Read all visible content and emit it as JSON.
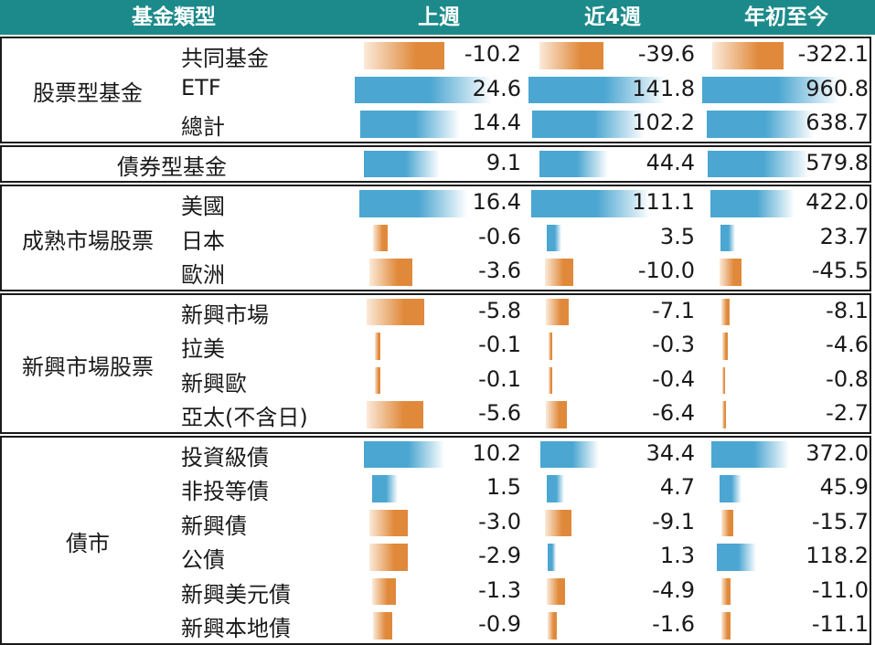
{
  "colors": {
    "header_bg": "#1c8a8a",
    "header_text": "#ffffff",
    "positive_bar": "#4ba6d1",
    "negative_bar": "#e0893a"
  },
  "header": {
    "category": "基金類型",
    "col1": "上週",
    "col2": "近4週",
    "col3": "年初至今"
  },
  "chart_data": {
    "type": "table",
    "columns": [
      "上週",
      "近4週",
      "年初至今"
    ],
    "groups": [
      {
        "name": "股票型基金",
        "rows": [
          {
            "label": "共同基金",
            "values": [
              -10.2,
              -39.6,
              -322.1
            ],
            "display": [
              "-10.2",
              "-39.6",
              "-322.1"
            ]
          },
          {
            "label": "ETF",
            "values": [
              24.6,
              141.8,
              960.8
            ],
            "display": [
              "24.6",
              "141.8",
              "960.8"
            ]
          },
          {
            "label": "總計",
            "values": [
              14.4,
              102.2,
              638.7
            ],
            "display": [
              "14.4",
              "102.2",
              "638.7"
            ]
          }
        ]
      },
      {
        "name": "債券型基金",
        "rows": [
          {
            "label": "",
            "values": [
              9.1,
              44.4,
              579.8
            ],
            "display": [
              "9.1",
              "44.4",
              "579.8"
            ]
          }
        ]
      },
      {
        "name": "成熟市場股票",
        "rows": [
          {
            "label": "美國",
            "values": [
              16.4,
              111.1,
              422.0
            ],
            "display": [
              "16.4",
              "111.1",
              "422.0"
            ]
          },
          {
            "label": "日本",
            "values": [
              -0.6,
              3.5,
              23.7
            ],
            "display": [
              "-0.6",
              "3.5",
              "23.7"
            ]
          },
          {
            "label": "歐洲",
            "values": [
              -3.6,
              -10.0,
              -45.5
            ],
            "display": [
              "-3.6",
              "-10.0",
              "-45.5"
            ]
          }
        ]
      },
      {
        "name": "新興市場股票",
        "rows": [
          {
            "label": "新興市場",
            "values": [
              -5.8,
              -7.1,
              -8.1
            ],
            "display": [
              "-5.8",
              "-7.1",
              "-8.1"
            ]
          },
          {
            "label": "拉美",
            "values": [
              -0.1,
              -0.3,
              -4.6
            ],
            "display": [
              "-0.1",
              "-0.3",
              "-4.6"
            ]
          },
          {
            "label": "新興歐",
            "values": [
              -0.1,
              -0.4,
              -0.8
            ],
            "display": [
              "-0.1",
              "-0.4",
              "-0.8"
            ]
          },
          {
            "label": "亞太(不含日)",
            "values": [
              -5.6,
              -6.4,
              -2.7
            ],
            "display": [
              "-5.6",
              "-6.4",
              "-2.7"
            ]
          }
        ]
      },
      {
        "name": "債市",
        "rows": [
          {
            "label": "投資級債",
            "values": [
              10.2,
              34.4,
              372.0
            ],
            "display": [
              "10.2",
              "34.4",
              "372.0"
            ]
          },
          {
            "label": "非投等債",
            "values": [
              1.5,
              4.7,
              45.9
            ],
            "display": [
              "1.5",
              "4.7",
              "45.9"
            ]
          },
          {
            "label": "新興債",
            "values": [
              -3.0,
              -9.1,
              -15.7
            ],
            "display": [
              "-3.0",
              "-9.1",
              "-15.7"
            ]
          },
          {
            "label": "公債",
            "values": [
              -2.9,
              1.3,
              118.2
            ],
            "display": [
              "-2.9",
              "1.3",
              "118.2"
            ]
          },
          {
            "label": "新興美元債",
            "values": [
              -1.3,
              -4.9,
              -11.0
            ],
            "display": [
              "-1.3",
              "-4.9",
              "-11.0"
            ]
          },
          {
            "label": "新興本地債",
            "values": [
              -0.9,
              -1.6,
              -11.1
            ],
            "display": [
              "-0.9",
              "-1.6",
              "-11.1"
            ]
          }
        ]
      }
    ]
  }
}
